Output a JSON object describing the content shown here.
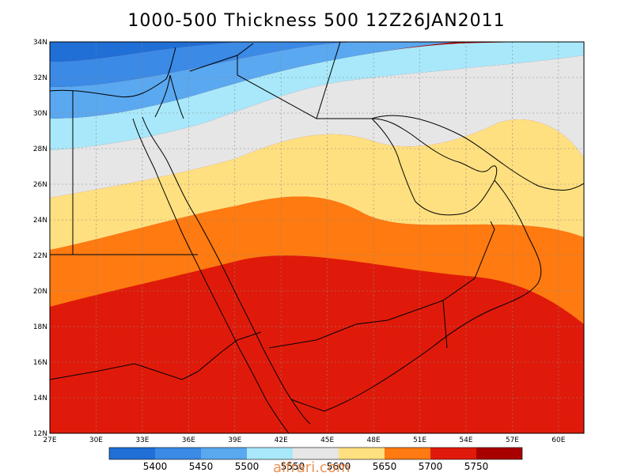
{
  "title": "1000-500 Thickness 500 12Z26JAN2011",
  "watermark": "alfrari.com",
  "map": {
    "lat_labels": [
      "34N",
      "32N",
      "30N",
      "28N",
      "26N",
      "24N",
      "22N",
      "20N",
      "18N",
      "16N",
      "14N",
      "12N"
    ],
    "lon_labels": [
      "27E",
      "30E",
      "33E",
      "36E",
      "39E",
      "42E",
      "45E",
      "48E",
      "51E",
      "54E",
      "57E",
      "60E"
    ],
    "field": "1000-500 hPa thickness",
    "grid": true
  },
  "colorbar": {
    "colors": [
      "#1f6fd6",
      "#3a8ae6",
      "#5aa8f0",
      "#a8e8fa",
      "#e6e6e6",
      "#ffe080",
      "#ff7a10",
      "#e01a0a",
      "#a80000"
    ],
    "labels": [
      "5400",
      "5450",
      "5500",
      "5550",
      "5600",
      "5650",
      "5700",
      "5750"
    ]
  },
  "colors": {
    "band_5400": "#1f6fd6",
    "band_5450": "#3a8ae6",
    "band_5500": "#5aa8f0",
    "band_5550": "#a8e8fa",
    "band_5600": "#e6e6e6",
    "band_5650": "#ffe080",
    "band_5700": "#ff7a10",
    "band_5750": "#e01a0a",
    "band_max": "#a80000"
  }
}
